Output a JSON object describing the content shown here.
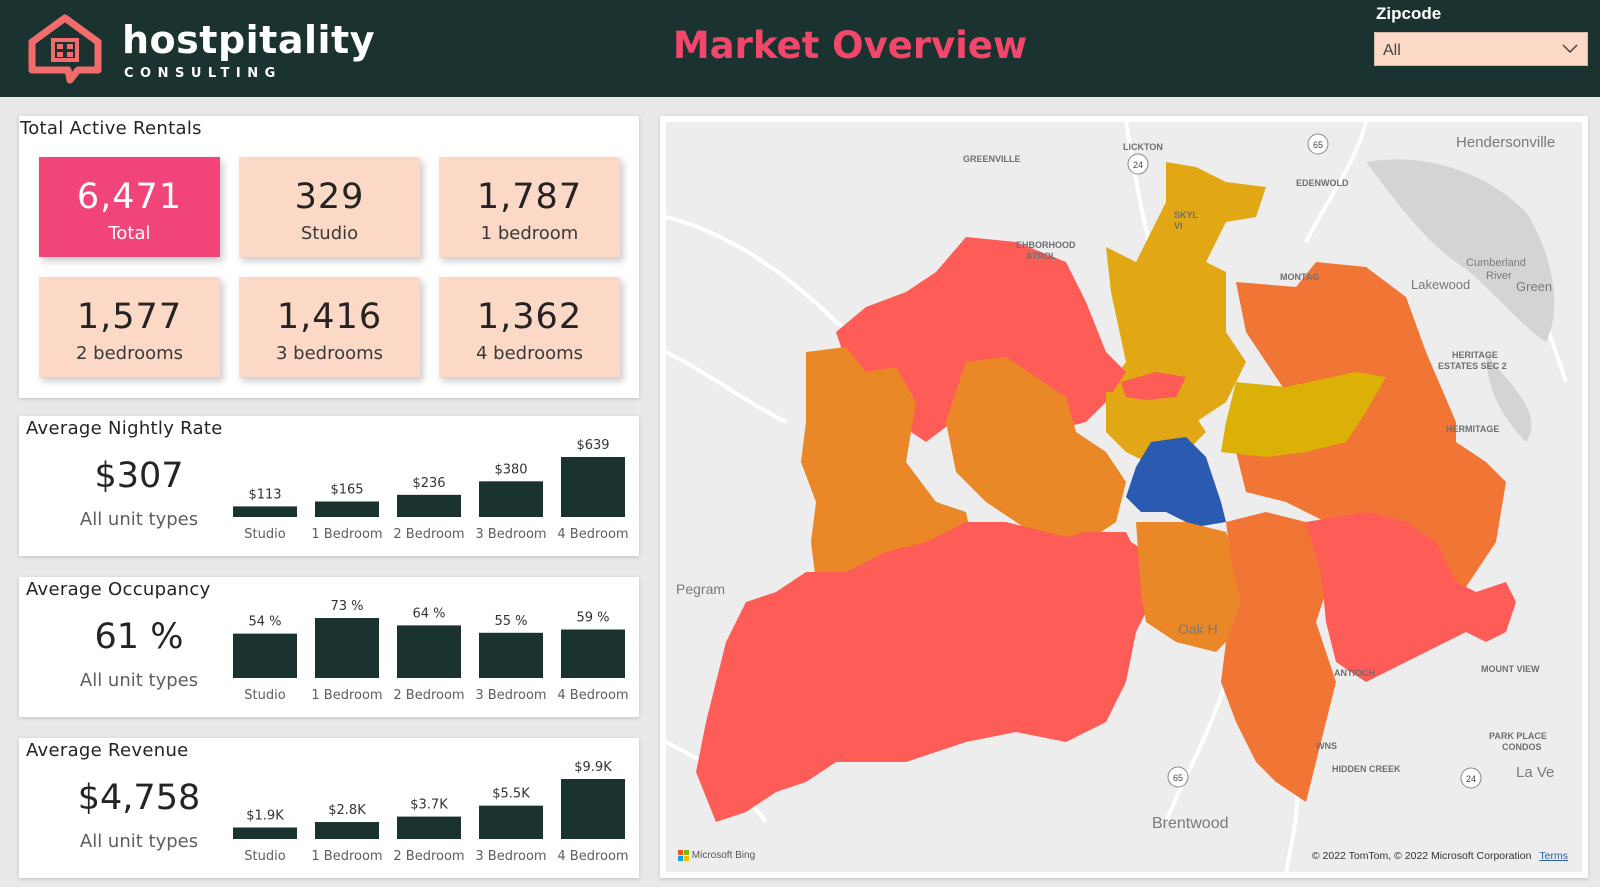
{
  "header": {
    "brand_name": "hostpitality",
    "brand_sub": "CONSULTING",
    "title": "Market Overview",
    "zipcode_label": "Zipcode",
    "zipcode_value": "All"
  },
  "rentals": {
    "title": "Total Active Rentals",
    "tiles": [
      {
        "value": "6,471",
        "label": "Total"
      },
      {
        "value": "329",
        "label": "Studio"
      },
      {
        "value": "1,787",
        "label": "1 bedroom"
      },
      {
        "value": "1,577",
        "label": "2 bedrooms"
      },
      {
        "value": "1,416",
        "label": "3 bedrooms"
      },
      {
        "value": "1,362",
        "label": "4 bedrooms"
      }
    ]
  },
  "nightly": {
    "title": "Average Nightly Rate",
    "value": "$307",
    "sub": "All unit types"
  },
  "occupancy": {
    "title": "Average Occupancy",
    "value": "61 %",
    "sub": "All unit types"
  },
  "revenue": {
    "title": "Average Revenue",
    "value": "$4,758",
    "sub": "All unit types"
  },
  "chart_data": [
    {
      "type": "bar",
      "categories": [
        "Studio",
        "1 Bedroom",
        "2 Bedroom",
        "3 Bedroom",
        "4 Bedroom"
      ],
      "values": [
        113,
        165,
        236,
        380,
        639
      ],
      "labels": [
        "$113",
        "$165",
        "$236",
        "$380",
        "$639"
      ],
      "ylim": [
        0,
        639
      ],
      "color": "#1a3330"
    },
    {
      "type": "bar",
      "categories": [
        "Studio",
        "1 Bedroom",
        "2 Bedroom",
        "3 Bedroom",
        "4 Bedroom"
      ],
      "values": [
        54,
        73,
        64,
        55,
        59
      ],
      "labels": [
        "54 %",
        "73 %",
        "64 %",
        "55 %",
        "59 %"
      ],
      "ylim": [
        0,
        73
      ],
      "color": "#1a3330"
    },
    {
      "type": "bar",
      "categories": [
        "Studio",
        "1 Bedroom",
        "2 Bedroom",
        "3 Bedroom",
        "4 Bedroom"
      ],
      "values": [
        1.9,
        2.8,
        3.7,
        5.5,
        9.9
      ],
      "labels": [
        "$1.9K",
        "$2.8K",
        "$3.7K",
        "$5.5K",
        "$9.9K"
      ],
      "ylim": [
        0,
        9.9
      ],
      "color": "#1a3330"
    }
  ],
  "map": {
    "places": {
      "hendersonville": "Hendersonville",
      "greenville": "GREENVILLE",
      "lickton": "LICKTON",
      "edenwold": "EDENWOLD",
      "neighborhood": "EHBORHOOD",
      "patrol": "ATROL",
      "skyline": "SKYL",
      "skyline2": "VI",
      "monta": "MONTAG",
      "cumberland": "Cumberland",
      "river": "River",
      "lakewood": "Lakewood",
      "green": "Green",
      "heritage": "HERITAGE",
      "estates": "ESTATES SEC 2",
      "hermitage": "HERMITAGE",
      "pegram": "Pegram",
      "oak": "Oak H",
      "antioch": "ANTIOCH",
      "mountview": "MOUNT VIEW",
      "parkplace": "PARK PLACE",
      "condos": "CONDOS",
      "wns": "WNS",
      "hiddencreek": "HIDDEN CREEK",
      "lave": "La Ve",
      "brentwood": "Brentwood",
      "hwy24a": "24",
      "hwy65a": "65",
      "hwy65b": "65",
      "hwy24b": "24"
    },
    "bing": "Microsoft Bing",
    "copyright": "© 2022 TomTom, © 2022 Microsoft Corporation",
    "terms": "Terms",
    "colors": {
      "red": "#fd5c57",
      "orange": "#ea8727",
      "dark_orange": "#f17535",
      "gold": "#e2a715",
      "yellow": "#dcb107",
      "blue": "#2a5bb1"
    }
  }
}
